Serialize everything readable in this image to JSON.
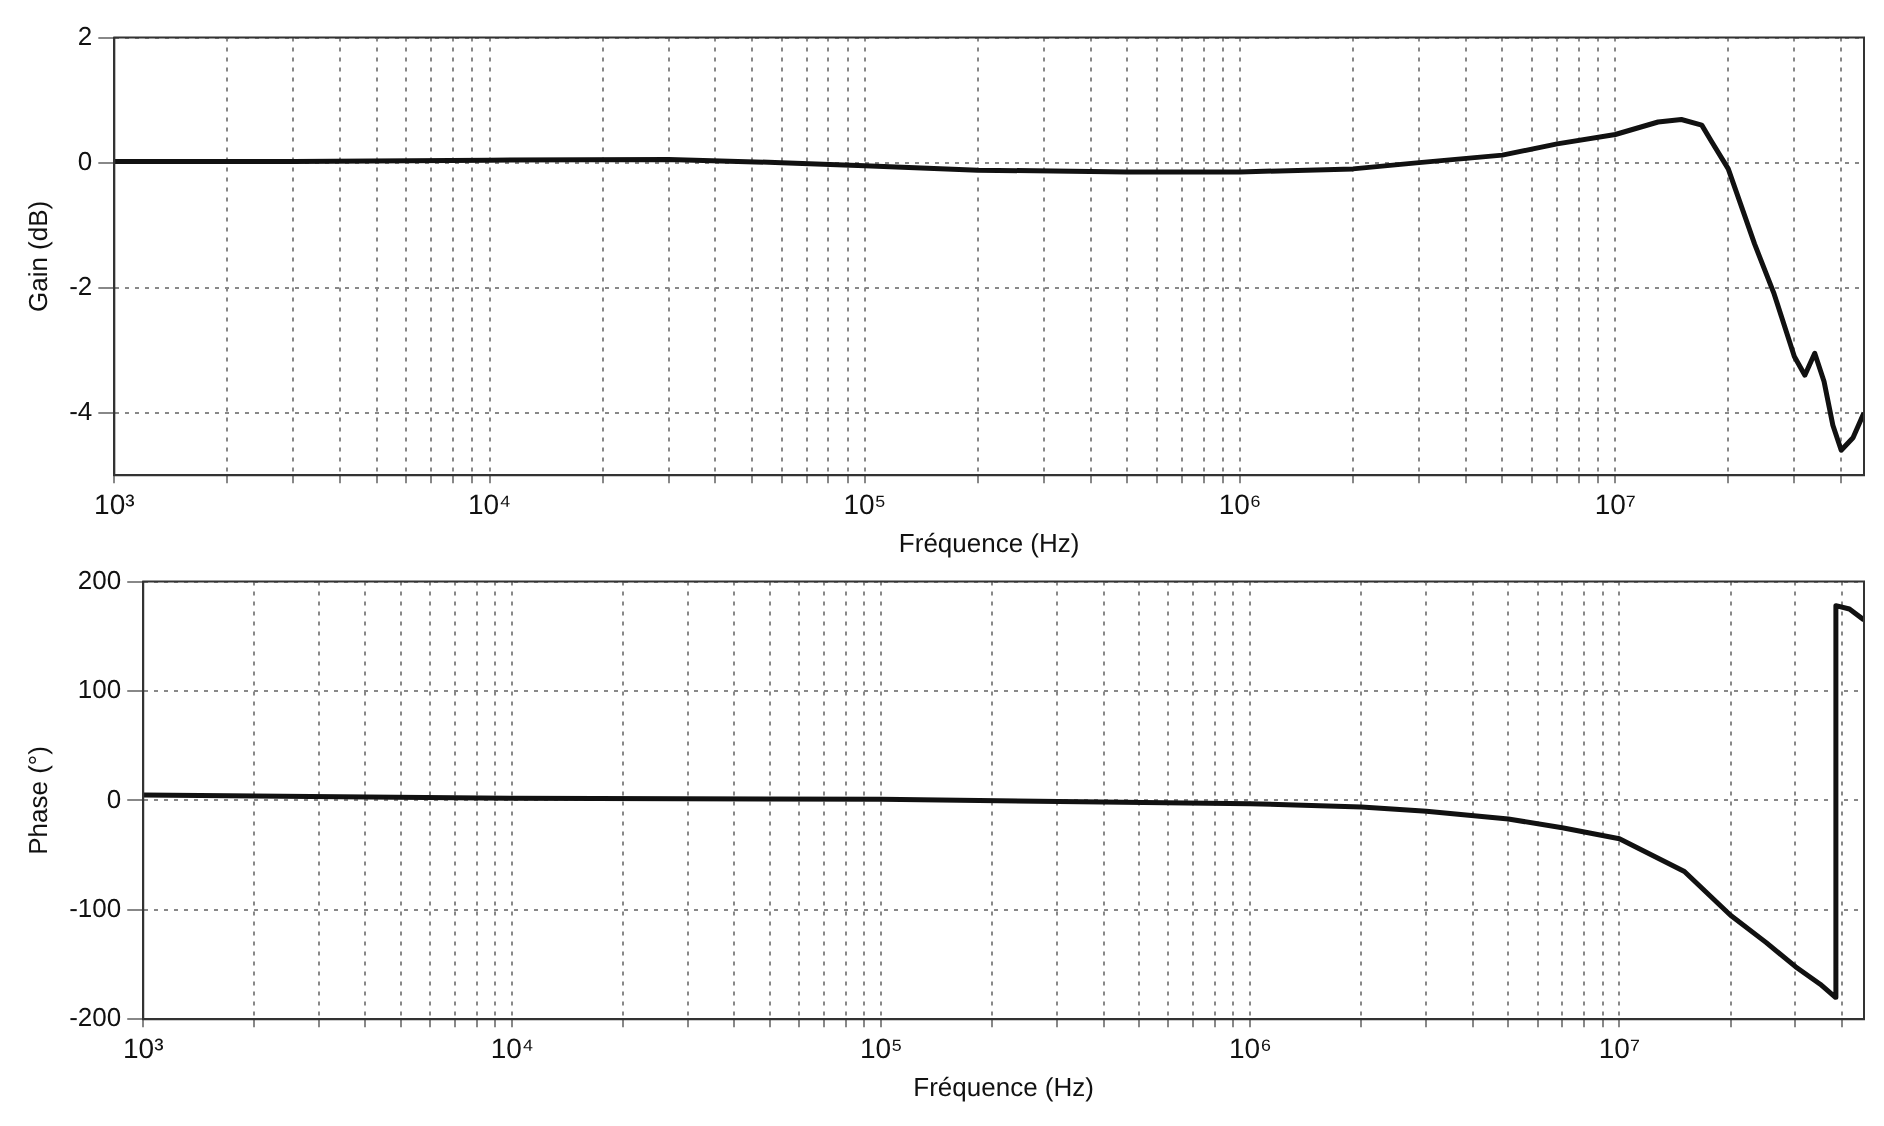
{
  "chart_data": [
    {
      "type": "line",
      "xlabel": "Fréquence (Hz)",
      "ylabel": "Gain (dB)",
      "log": "x",
      "grid": true,
      "marker": "none",
      "line_style": "solid",
      "legend": false,
      "xlim": [
        1000,
        46000000
      ],
      "ylim": [
        -5,
        2
      ],
      "yticks": [
        -4,
        -2,
        0,
        2
      ],
      "xticks": [
        {
          "value": 1000,
          "label": "10³"
        },
        {
          "value": 2000,
          "label": null
        },
        {
          "value": 3000,
          "label": null
        },
        {
          "value": 4000,
          "label": null
        },
        {
          "value": 5000,
          "label": null
        },
        {
          "value": 6000,
          "label": null
        },
        {
          "value": 7000,
          "label": null
        },
        {
          "value": 8000,
          "label": null
        },
        {
          "value": 9000,
          "label": null
        },
        {
          "value": 10000,
          "label": "10⁴"
        },
        {
          "value": 20000,
          "label": null
        },
        {
          "value": 30000,
          "label": null
        },
        {
          "value": 40000,
          "label": null
        },
        {
          "value": 50000,
          "label": null
        },
        {
          "value": 60000,
          "label": null
        },
        {
          "value": 70000,
          "label": null
        },
        {
          "value": 80000,
          "label": null
        },
        {
          "value": 90000,
          "label": null
        },
        {
          "value": 100000,
          "label": "10⁵"
        },
        {
          "value": 200000,
          "label": null
        },
        {
          "value": 300000,
          "label": null
        },
        {
          "value": 400000,
          "label": null
        },
        {
          "value": 500000,
          "label": null
        },
        {
          "value": 600000,
          "label": null
        },
        {
          "value": 700000,
          "label": null
        },
        {
          "value": 800000,
          "label": null
        },
        {
          "value": 900000,
          "label": null
        },
        {
          "value": 1000000,
          "label": "10⁶"
        },
        {
          "value": 2000000,
          "label": null
        },
        {
          "value": 3000000,
          "label": null
        },
        {
          "value": 4000000,
          "label": null
        },
        {
          "value": 5000000,
          "label": null
        },
        {
          "value": 6000000,
          "label": null
        },
        {
          "value": 7000000,
          "label": null
        },
        {
          "value": 8000000,
          "label": null
        },
        {
          "value": 9000000,
          "label": null
        },
        {
          "value": 10000000,
          "label": "10⁷"
        },
        {
          "value": 20000000,
          "label": null
        },
        {
          "value": 30000000,
          "label": null
        },
        {
          "value": 40000000,
          "label": null
        }
      ],
      "series": [
        {
          "color": "#111111",
          "x": [
            1000,
            3000,
            10000,
            30000,
            60000,
            100000,
            200000,
            500000,
            1000000,
            2000000,
            3000000,
            5000000,
            7000000,
            10000000,
            13000000,
            15000000,
            17000000,
            18000000,
            20000000,
            23500000,
            26500000,
            30000000,
            32000000,
            34000000,
            36000000,
            38000000,
            40000000,
            43000000,
            46000000
          ],
          "values": [
            0.02,
            0.02,
            0.04,
            0.05,
            0.0,
            -0.05,
            -0.12,
            -0.15,
            -0.15,
            -0.1,
            0.0,
            0.12,
            0.3,
            0.45,
            0.65,
            0.69,
            0.6,
            0.35,
            -0.1,
            -1.3,
            -2.1,
            -3.1,
            -3.4,
            -3.05,
            -3.5,
            -4.2,
            -4.6,
            -4.4,
            -4.0
          ]
        }
      ]
    },
    {
      "type": "line",
      "xlabel": "Fréquence (Hz)",
      "ylabel": "Phase (°)",
      "log": "x",
      "grid": true,
      "marker": "none",
      "line_style": "solid",
      "legend": false,
      "xlim": [
        1000,
        46000000
      ],
      "ylim": [
        -200,
        200
      ],
      "yticks": [
        -200,
        -100,
        0,
        100,
        200
      ],
      "xticks": [
        {
          "value": 1000,
          "label": "10³"
        },
        {
          "value": 2000,
          "label": null
        },
        {
          "value": 3000,
          "label": null
        },
        {
          "value": 4000,
          "label": null
        },
        {
          "value": 5000,
          "label": null
        },
        {
          "value": 6000,
          "label": null
        },
        {
          "value": 7000,
          "label": null
        },
        {
          "value": 8000,
          "label": null
        },
        {
          "value": 9000,
          "label": null
        },
        {
          "value": 10000,
          "label": "10⁴"
        },
        {
          "value": 20000,
          "label": null
        },
        {
          "value": 30000,
          "label": null
        },
        {
          "value": 40000,
          "label": null
        },
        {
          "value": 50000,
          "label": null
        },
        {
          "value": 60000,
          "label": null
        },
        {
          "value": 70000,
          "label": null
        },
        {
          "value": 80000,
          "label": null
        },
        {
          "value": 90000,
          "label": null
        },
        {
          "value": 100000,
          "label": "10⁵"
        },
        {
          "value": 200000,
          "label": null
        },
        {
          "value": 300000,
          "label": null
        },
        {
          "value": 400000,
          "label": null
        },
        {
          "value": 500000,
          "label": null
        },
        {
          "value": 600000,
          "label": null
        },
        {
          "value": 700000,
          "label": null
        },
        {
          "value": 800000,
          "label": null
        },
        {
          "value": 900000,
          "label": null
        },
        {
          "value": 1000000,
          "label": "10⁶"
        },
        {
          "value": 2000000,
          "label": null
        },
        {
          "value": 3000000,
          "label": null
        },
        {
          "value": 4000000,
          "label": null
        },
        {
          "value": 5000000,
          "label": null
        },
        {
          "value": 6000000,
          "label": null
        },
        {
          "value": 7000000,
          "label": null
        },
        {
          "value": 8000000,
          "label": null
        },
        {
          "value": 9000000,
          "label": null
        },
        {
          "value": 10000000,
          "label": "10⁷"
        },
        {
          "value": 20000000,
          "label": null
        },
        {
          "value": 30000000,
          "label": null
        },
        {
          "value": 40000000,
          "label": null
        }
      ],
      "series": [
        {
          "color": "#111111",
          "x": [
            1000,
            10000,
            100000,
            1000000,
            2000000,
            3000000,
            5000000,
            7000000,
            10000000,
            15000000,
            20000000,
            25000000,
            30000000,
            35000000,
            38500000,
            38600000,
            42000000,
            46000000
          ],
          "values": [
            5,
            2,
            1,
            -3,
            -6,
            -10,
            -17,
            -25,
            -35,
            -65,
            -105,
            -130,
            -152,
            -168,
            -180,
            178,
            175,
            165
          ]
        }
      ]
    }
  ]
}
